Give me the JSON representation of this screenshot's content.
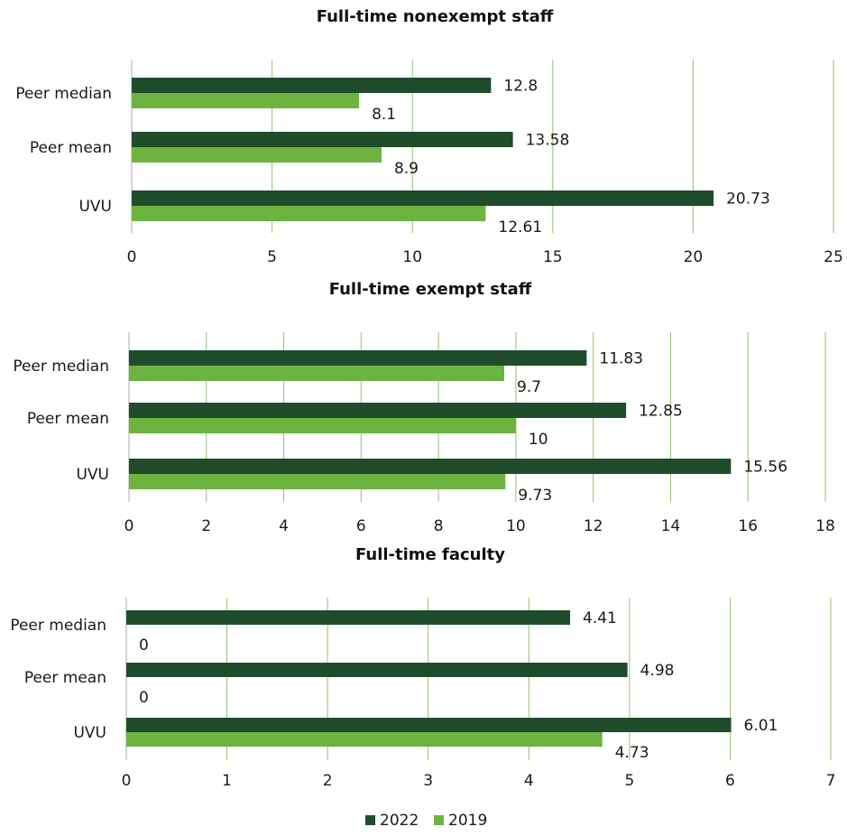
{
  "chart_data": [
    {
      "type": "bar",
      "orientation": "horizontal",
      "title": "Full-time nonexempt staff",
      "categories": [
        "Peer median",
        "Peer mean",
        "UVU"
      ],
      "series": [
        {
          "name": "2022",
          "values": [
            12.8,
            13.58,
            20.73
          ]
        },
        {
          "name": "2019",
          "values": [
            8.1,
            8.9,
            12.61
          ]
        }
      ],
      "value_labels": {
        "2022": [
          "12.8",
          "13.58",
          "20.73"
        ],
        "2019": [
          "8.1",
          "8.9",
          "12.61"
        ]
      },
      "xlim": [
        0,
        25
      ],
      "xticks": [
        0,
        5,
        10,
        15,
        20,
        25
      ],
      "grid": true
    },
    {
      "type": "bar",
      "orientation": "horizontal",
      "title": "Full-time exempt staff",
      "categories": [
        "Peer median",
        "Peer mean",
        "UVU"
      ],
      "series": [
        {
          "name": "2022",
          "values": [
            11.83,
            12.85,
            15.56
          ]
        },
        {
          "name": "2019",
          "values": [
            9.7,
            10,
            9.73
          ]
        }
      ],
      "value_labels": {
        "2022": [
          "11.83",
          "12.85",
          "15.56"
        ],
        "2019": [
          "9.7",
          "10",
          "9.73"
        ]
      },
      "xlim": [
        0,
        18
      ],
      "xticks": [
        0,
        2,
        4,
        6,
        8,
        10,
        12,
        14,
        16,
        18
      ],
      "grid": true
    },
    {
      "type": "bar",
      "orientation": "horizontal",
      "title": "Full-time faculty",
      "categories": [
        "Peer median",
        "Peer mean",
        "UVU"
      ],
      "series": [
        {
          "name": "2022",
          "values": [
            4.41,
            4.98,
            6.01
          ]
        },
        {
          "name": "2019",
          "values": [
            0,
            0,
            4.73
          ]
        }
      ],
      "value_labels": {
        "2022": [
          "4.41",
          "4.98",
          "6.01"
        ],
        "2019": [
          "0",
          "0",
          "4.73"
        ]
      },
      "xlim": [
        0,
        7
      ],
      "xticks": [
        0,
        1,
        2,
        3,
        4,
        5,
        6,
        7
      ],
      "grid": true
    }
  ],
  "legend": {
    "placement": "bottom-center",
    "items": [
      {
        "label": "2022",
        "color": "#1f4d2b"
      },
      {
        "label": "2019",
        "color": "#6db33f"
      }
    ]
  },
  "colors": {
    "series_2022": "#1f4d2b",
    "series_2019": "#6db33f",
    "grid": "#8fc46a"
  }
}
